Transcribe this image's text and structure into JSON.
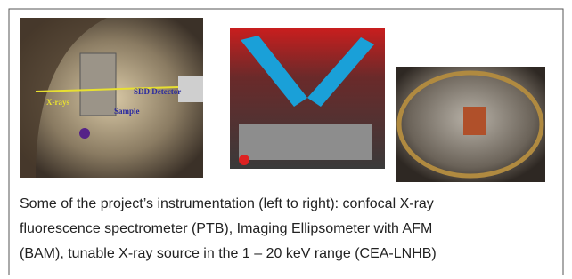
{
  "photo_labels": {
    "x_rays": "X-rays",
    "detector": "SDD Detector",
    "sample": "Sample"
  },
  "caption": [
    "Some of the project’s instrumentation (left to right):  confocal X-ray",
    "fluorescence spectrometer (PTB), Imaging Ellipsometer with AFM",
    "(BAM), tunable X-ray source in the 1 – 20 keV range (CEA-LNHB)"
  ]
}
